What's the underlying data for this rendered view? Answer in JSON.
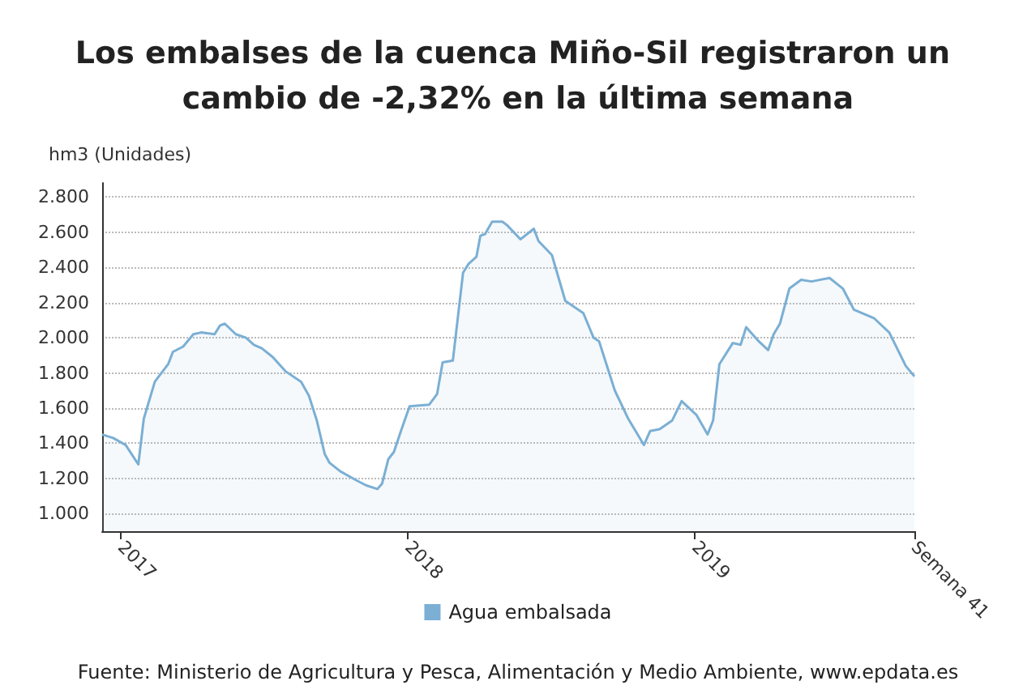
{
  "chart_data": {
    "type": "area",
    "title": "Los embalses de la cuenca Miño-Sil registraron un cambio de -2,32% en la última semana",
    "ylabel": "hm3 (Unidades)",
    "x": [
      "2016-12-08",
      "2016-12-22",
      "2017-01-07",
      "2017-01-23",
      "2017-01-30",
      "2017-02-13",
      "2017-03-02",
      "2017-03-08",
      "2017-03-21",
      "2017-04-03",
      "2017-04-13",
      "2017-04-30",
      "2017-05-07",
      "2017-05-13",
      "2017-05-27",
      "2017-06-09",
      "2017-06-19",
      "2017-06-29",
      "2017-07-13",
      "2017-07-29",
      "2017-08-18",
      "2017-08-28",
      "2017-09-07",
      "2017-09-17",
      "2017-09-23",
      "2017-10-07",
      "2017-10-27",
      "2017-11-09",
      "2017-11-23",
      "2017-11-29",
      "2017-12-07",
      "2017-12-14",
      "2017-12-23",
      "2018-01-03",
      "2018-01-28",
      "2018-02-07",
      "2018-02-14",
      "2018-02-27",
      "2018-03-12",
      "2018-03-19",
      "2018-03-29",
      "2018-04-03",
      "2018-04-09",
      "2018-04-18",
      "2018-05-01",
      "2018-05-07",
      "2018-05-24",
      "2018-06-10",
      "2018-06-16",
      "2018-07-03",
      "2018-07-20",
      "2018-08-12",
      "2018-08-25",
      "2018-09-01",
      "2018-09-21",
      "2018-10-08",
      "2018-10-28",
      "2018-11-05",
      "2018-11-17",
      "2018-12-03",
      "2018-12-15",
      "2019-01-03",
      "2019-01-17",
      "2019-01-24",
      "2019-02-01",
      "2019-02-18",
      "2019-02-28",
      "2019-03-07",
      "2019-03-23",
      "2019-04-04",
      "2019-04-11",
      "2019-04-19",
      "2019-05-01",
      "2019-05-16",
      "2019-05-29",
      "2019-06-21",
      "2019-07-08",
      "2019-07-22",
      "2019-08-17",
      "2019-09-05",
      "2019-09-26",
      "2019-10-07"
    ],
    "series": [
      {
        "name": "Agua embalsada",
        "color": "#7bafd4",
        "values": [
          1450,
          1430,
          1390,
          1280,
          1540,
          1750,
          1850,
          1920,
          1950,
          2020,
          2030,
          2020,
          2070,
          2080,
          2020,
          2000,
          1960,
          1940,
          1890,
          1810,
          1750,
          1670,
          1530,
          1340,
          1290,
          1240,
          1190,
          1160,
          1140,
          1170,
          1310,
          1350,
          1470,
          1610,
          1620,
          1680,
          1860,
          1870,
          2370,
          2420,
          2460,
          2580,
          2590,
          2660,
          2660,
          2640,
          2560,
          2620,
          2550,
          2470,
          2210,
          2140,
          2000,
          1980,
          1700,
          1540,
          1390,
          1470,
          1480,
          1530,
          1640,
          1560,
          1450,
          1530,
          1850,
          1970,
          1960,
          2060,
          1980,
          1930,
          2020,
          2080,
          2280,
          2330,
          2320,
          2340,
          2280,
          2160,
          2110,
          2030,
          1840,
          1780
        ]
      }
    ],
    "xlim": [
      "2016-12-08",
      "2019-10-07"
    ],
    "xticks": [
      "2017",
      "2018",
      "2019",
      {
        "value": "2019-10-07",
        "label": "Semana 41"
      }
    ],
    "ylim": [
      900,
      2880
    ],
    "yticks": [
      {
        "value": 1000,
        "label": "1.000"
      },
      {
        "value": 1200,
        "label": "1.200"
      },
      {
        "value": 1400,
        "label": "1.400"
      },
      {
        "value": 1600,
        "label": "1.600"
      },
      {
        "value": 1800,
        "label": "1.800"
      },
      {
        "value": 2000,
        "label": "2.000"
      },
      {
        "value": 2200,
        "label": "2.200"
      },
      {
        "value": 2400,
        "label": "2.400"
      },
      {
        "value": 2600,
        "label": "2.600"
      },
      {
        "value": 2800,
        "label": "2.800"
      }
    ],
    "grid": "y",
    "legend": "bottom",
    "annotations": [
      "Fuente: Ministerio de Agricultura y Pesca, Alimentación y Medio Ambiente, www.epdata.es"
    ]
  }
}
